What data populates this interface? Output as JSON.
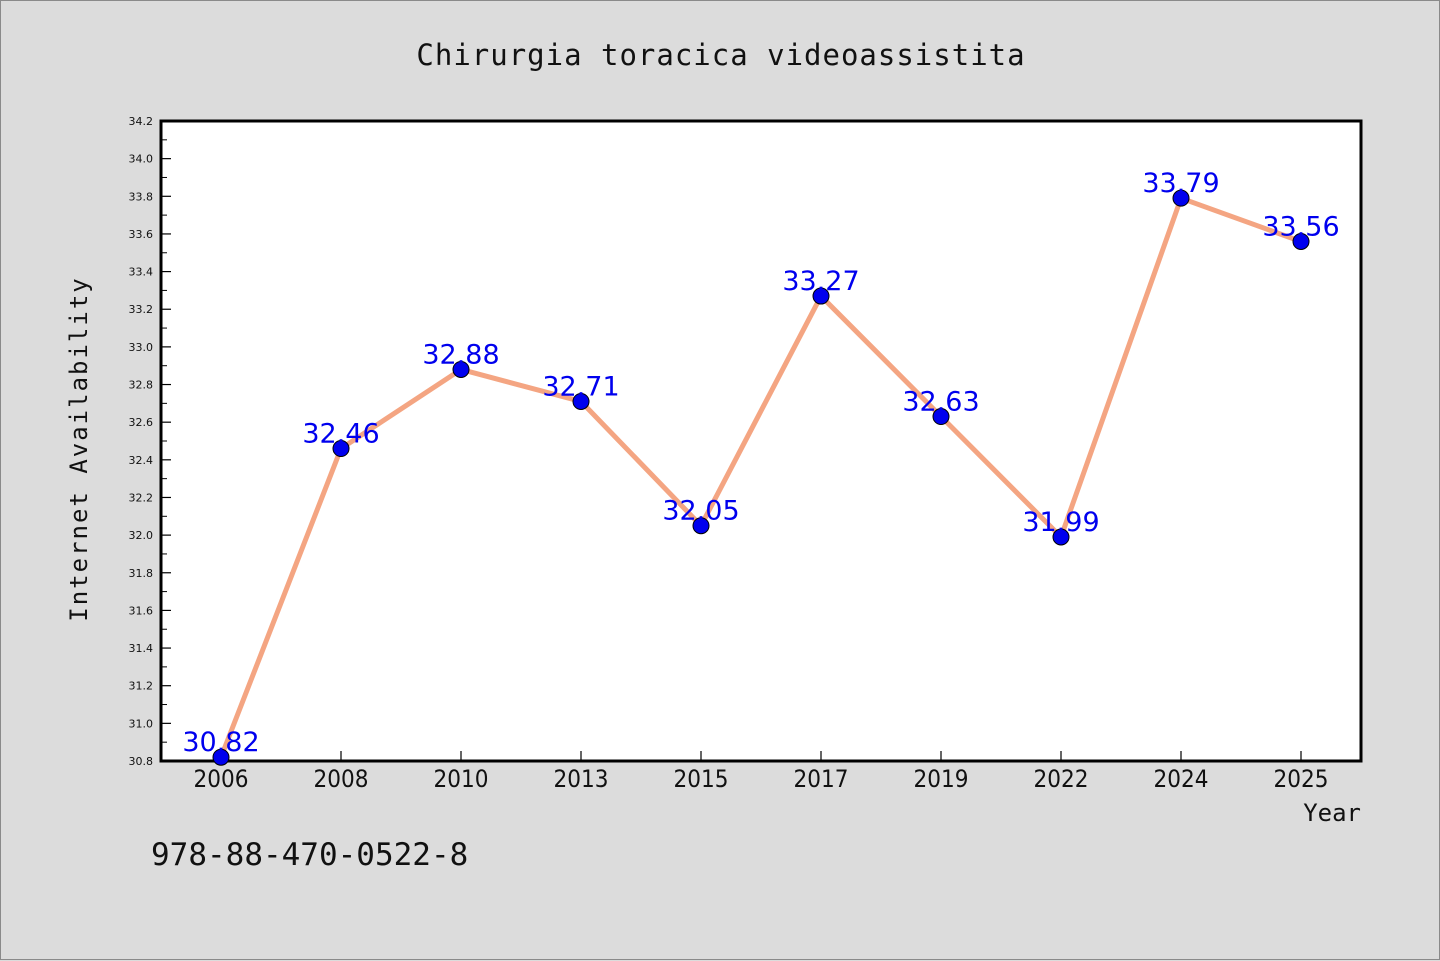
{
  "chart_data": {
    "type": "line",
    "title": "Chirurgia toracica videoassistita",
    "xlabel": "Year",
    "ylabel": "Internet Availability",
    "categories": [
      "2006",
      "2008",
      "2010",
      "2013",
      "2015",
      "2017",
      "2019",
      "2022",
      "2024",
      "2025"
    ],
    "values": [
      30.82,
      32.46,
      32.88,
      32.71,
      32.05,
      33.27,
      32.63,
      31.99,
      33.79,
      33.56
    ],
    "data_labels": [
      "30.82",
      "32.46",
      "32.88",
      "32.71",
      "32.05",
      "33.27",
      "32.63",
      "31.99",
      "33.79",
      "33.56"
    ],
    "ylim": [
      30.8,
      34.2
    ],
    "yticks": [
      "30.8",
      "31.0",
      "31.2",
      "31.4",
      "31.6",
      "31.8",
      "32.0",
      "32.2",
      "32.4",
      "32.6",
      "32.8",
      "33.0",
      "33.2",
      "33.4",
      "33.6",
      "33.8",
      "34.0",
      "34.2"
    ],
    "grid": false,
    "line_color": "#f4a582",
    "marker_color": "#0000ee",
    "label_color": "#0000ee"
  },
  "footer": {
    "isbn": "978-88-470-0522-8"
  }
}
